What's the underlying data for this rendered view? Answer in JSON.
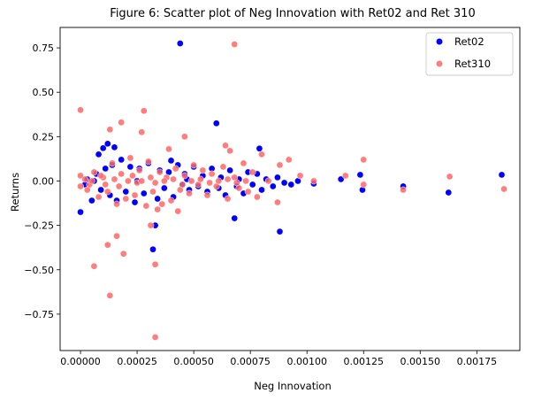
{
  "chart_data": {
    "type": "scatter",
    "title": "Figure 6: Scatter plot of Neg Innovation with Ret02 and Ret 310",
    "xlabel": "Neg Innovation",
    "ylabel": "Returns",
    "xlim": [
      -9e-05,
      0.00194
    ],
    "ylim": [
      -0.955,
      0.865
    ],
    "xticks": [
      0,
      0.00025,
      0.0005,
      0.00075,
      0.001,
      0.00125,
      0.0015,
      0.00175
    ],
    "xtick_labels": [
      "0.00000",
      "0.00025",
      "0.00050",
      "0.00075",
      "0.00100",
      "0.00125",
      "0.00150",
      "0.00175"
    ],
    "yticks": [
      0.75,
      0.5,
      0.25,
      0,
      -0.25,
      -0.5,
      -0.75
    ],
    "ytick_labels": [
      "0.75",
      "0.50",
      "0.25",
      "0.00",
      "−0.25",
      "−0.50",
      "−0.75"
    ],
    "grid": false,
    "legend": "top-right",
    "series": [
      {
        "name": "Ret02",
        "color": "#0000ff",
        "points": [
          [
            0.00044,
            0.775
          ],
          [
            0.0006,
            0.325
          ],
          [
            0.00079,
            0.183
          ],
          [
            0.00012,
            0.21
          ],
          [
            0.00015,
            0.19
          ],
          [
            0.0001,
            0.185
          ],
          [
            8e-05,
            0.15
          ],
          [
            0.0004,
            0.115
          ],
          [
            0.0,
            -0.175
          ],
          [
            0.00068,
            -0.21
          ],
          [
            0.00088,
            -0.285
          ],
          [
            0.00032,
            -0.385
          ],
          [
            0.00033,
            -0.25
          ],
          [
            0.00186,
            0.035
          ],
          [
            0.001625,
            -0.065
          ],
          [
            0.001425,
            -0.03
          ],
          [
            0.001245,
            -0.05
          ],
          [
            0.001235,
            0.035
          ],
          [
            0.00115,
            0.01
          ],
          [
            0.00103,
            -0.015
          ],
          [
            0.00096,
            0.0
          ],
          [
            0.00093,
            -0.02
          ],
          [
            0.0009,
            -0.01
          ],
          [
            0.00087,
            0.02
          ],
          [
            0.00085,
            -0.03
          ],
          [
            0.00082,
            0.01
          ],
          [
            0.0008,
            -0.05
          ],
          [
            0.00078,
            0.04
          ],
          [
            0.00076,
            -0.02
          ],
          [
            0.00074,
            0.05
          ],
          [
            0.00072,
            -0.07
          ],
          [
            0.0007,
            0.01
          ],
          [
            0.00069,
            -0.03
          ],
          [
            0.00066,
            0.06
          ],
          [
            0.00064,
            -0.08
          ],
          [
            0.00062,
            0.02
          ],
          [
            0.00061,
            -0.04
          ],
          [
            0.00058,
            0.07
          ],
          [
            0.00056,
            -0.06
          ],
          [
            0.00054,
            0.03
          ],
          [
            0.00052,
            -0.03
          ],
          [
            0.0005,
            0.08
          ],
          [
            0.00048,
            -0.05
          ],
          [
            0.00046,
            0.04
          ],
          [
            0.00045,
            -0.02
          ],
          [
            0.00043,
            0.09
          ],
          [
            0.00041,
            -0.09
          ],
          [
            0.00039,
            0.05
          ],
          [
            0.00037,
            -0.04
          ],
          [
            0.00035,
            0.06
          ],
          [
            0.00034,
            -0.1
          ],
          [
            0.0003,
            0.1
          ],
          [
            0.00028,
            -0.07
          ],
          [
            0.00026,
            0.07
          ],
          [
            0.00024,
            -0.12
          ],
          [
            0.00022,
            0.08
          ],
          [
            0.0002,
            -0.06
          ],
          [
            0.00018,
            0.12
          ],
          [
            0.00016,
            -0.11
          ],
          [
            0.00014,
            0.09
          ],
          [
            0.00013,
            -0.08
          ],
          [
            0.00011,
            0.07
          ],
          [
            9e-05,
            -0.05
          ],
          [
            7e-05,
            0.04
          ],
          [
            5e-05,
            -0.11
          ],
          [
            3e-05,
            0.01
          ],
          [
            2e-05,
            -0.02
          ],
          [
            6e-05,
            0.0
          ],
          [
            0.00025,
            0.0
          ],
          [
            0.00047,
            0.01
          ]
        ]
      },
      {
        "name": "Ret310",
        "color": "#ff6666",
        "points": [
          [
            0.0,
            0.4
          ],
          [
            0.00068,
            0.77
          ],
          [
            0.00028,
            0.395
          ],
          [
            0.00018,
            0.33
          ],
          [
            0.00013,
            0.29
          ],
          [
            0.00027,
            0.275
          ],
          [
            0.00046,
            0.25
          ],
          [
            0.00064,
            0.2
          ],
          [
            0.00066,
            0.17
          ],
          [
            0.00039,
            0.18
          ],
          [
            0.00033,
            -0.88
          ],
          [
            0.00013,
            -0.645
          ],
          [
            6e-05,
            -0.48
          ],
          [
            0.00033,
            -0.47
          ],
          [
            0.00019,
            -0.41
          ],
          [
            0.00012,
            -0.36
          ],
          [
            0.00016,
            -0.31
          ],
          [
            0.00031,
            -0.25
          ],
          [
            0.00043,
            -0.17
          ],
          [
            0.00034,
            -0.16
          ],
          [
            0.00163,
            0.025
          ],
          [
            0.00187,
            -0.045
          ],
          [
            0.001425,
            -0.05
          ],
          [
            0.00125,
            0.12
          ],
          [
            0.00125,
            -0.02
          ],
          [
            0.00117,
            0.03
          ],
          [
            0.00103,
            0.0
          ],
          [
            0.00097,
            0.03
          ],
          [
            0.00092,
            0.12
          ],
          [
            0.00088,
            0.09
          ],
          [
            0.00087,
            -0.12
          ],
          [
            0.00083,
            0.0
          ],
          [
            0.0008,
            0.15
          ],
          [
            0.00078,
            -0.09
          ],
          [
            0.00076,
            0.05
          ],
          [
            0.00074,
            -0.06
          ],
          [
            0.00072,
            0.1
          ],
          [
            0.0007,
            -0.04
          ],
          [
            0.00068,
            0.02
          ],
          [
            0.00065,
            -0.1
          ],
          [
            0.00063,
            0.08
          ],
          [
            0.0006,
            -0.03
          ],
          [
            0.00058,
            0.04
          ],
          [
            0.00056,
            -0.08
          ],
          [
            0.00054,
            0.06
          ],
          [
            0.00052,
            -0.02
          ],
          [
            0.0005,
            0.09
          ],
          [
            0.00048,
            -0.07
          ],
          [
            0.00046,
            0.03
          ],
          [
            0.00044,
            -0.05
          ],
          [
            0.00042,
            0.07
          ],
          [
            0.0004,
            -0.11
          ],
          [
            0.00038,
            0.02
          ],
          [
            0.00036,
            -0.13
          ],
          [
            0.00035,
            0.05
          ],
          [
            0.00032,
            -0.06
          ],
          [
            0.0003,
            0.11
          ],
          [
            0.00029,
            -0.14
          ],
          [
            0.00026,
            0.06
          ],
          [
            0.00024,
            -0.08
          ],
          [
            0.00022,
            0.13
          ],
          [
            0.0002,
            -0.1
          ],
          [
            0.00018,
            0.04
          ],
          [
            0.00016,
            -0.13
          ],
          [
            0.00014,
            0.1
          ],
          [
            0.00012,
            -0.06
          ],
          [
            0.0001,
            0.02
          ],
          [
            8e-05,
            -0.09
          ],
          [
            6e-05,
            0.05
          ],
          [
            4e-05,
            -0.02
          ],
          [
            0.0,
            0.03
          ],
          [
            0.0,
            -0.03
          ],
          [
            2e-05,
            0.01
          ],
          [
            3e-05,
            -0.05
          ],
          [
            5e-05,
            0.0
          ],
          [
            0.00015,
            0.01
          ],
          [
            0.00017,
            -0.03
          ],
          [
            0.00021,
            0.0
          ],
          [
            0.00023,
            0.03
          ],
          [
            0.00025,
            -0.01
          ],
          [
            0.00027,
            0.0
          ],
          [
            0.00031,
            0.02
          ],
          [
            0.00033,
            -0.01
          ],
          [
            0.00037,
            0.0
          ],
          [
            0.00041,
            0.01
          ],
          [
            0.00045,
            -0.02
          ],
          [
            0.00049,
            0.0
          ],
          [
            0.00053,
            0.01
          ],
          [
            0.00057,
            -0.01
          ],
          [
            0.00061,
            0.0
          ],
          [
            0.00065,
            0.01
          ],
          [
            0.00069,
            -0.01
          ],
          [
            0.00073,
            0.0
          ],
          [
            0.00011,
            -0.02
          ],
          [
            9e-05,
            0.03
          ]
        ]
      }
    ]
  }
}
